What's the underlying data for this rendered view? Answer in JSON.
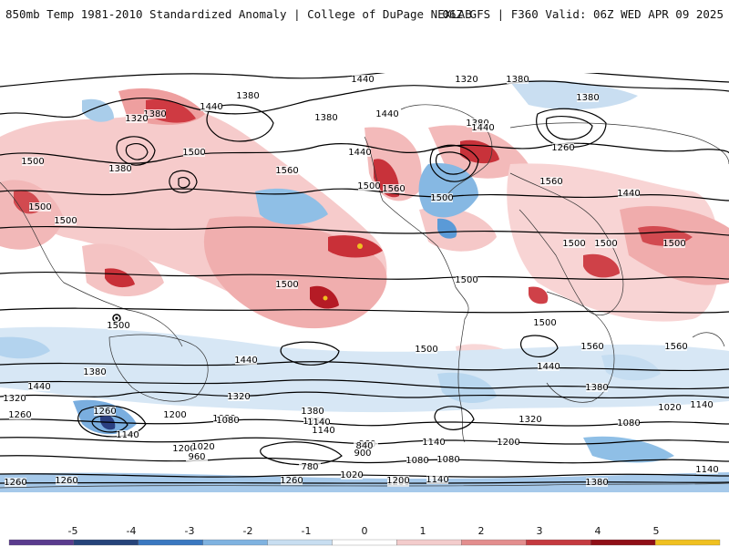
{
  "header": {
    "title": "850mb Temp 1981-2010 Standardized Anomaly | College of DuPage NEXLAB",
    "run_info": "06Z GFS | F360 Valid: 06Z WED APR 09 2025"
  },
  "map": {
    "variable": "850mb Temp Standardized Anomaly",
    "contour_labels": [
      "1320",
      "1380",
      "1440",
      "1380",
      "1320",
      "1440",
      "1380",
      "1380",
      "1440",
      "1380",
      "1380",
      "1260",
      "1440",
      "1500",
      "1380",
      "1500",
      "1560",
      "1440",
      "1500",
      "1560",
      "1500",
      "1560",
      "1440",
      "1500",
      "1500",
      "1500",
      "1500",
      "1500",
      "1500",
      "1500",
      "1500",
      "1440",
      "1560",
      "1500",
      "1500",
      "1560",
      "1440",
      "1380",
      "1440",
      "1380",
      "1320",
      "1260",
      "1200",
      "1080",
      "1320",
      "1140",
      "1320",
      "1380",
      "1260",
      "1140",
      "1200",
      "1080",
      "1020",
      "1140",
      "1200",
      "1020",
      "960",
      "1080",
      "960",
      "840",
      "900",
      "1140",
      "1080",
      "1200",
      "1080",
      "1140",
      "780",
      "1020",
      "1200",
      "1140",
      "1260",
      "1260",
      "1260",
      "1140",
      "1380",
      "1260"
    ],
    "colors": {
      "strong_positive": "#a3101a",
      "positive": "#e3646a",
      "weak_positive": "#f6c3c3",
      "weak_negative": "#b9d7ef",
      "negative": "#5aa0dc",
      "strong_negative": "#26437a"
    }
  },
  "colorbar": {
    "ticks": [
      "-5",
      "-4",
      "-3",
      "-2",
      "-1",
      "0",
      "1",
      "2",
      "3",
      "4",
      "5"
    ],
    "colors": [
      "#5a3b8e",
      "#26437a",
      "#3a78c0",
      "#7fb2e0",
      "#c8def1",
      "#ffffff",
      "#f3cccc",
      "#e38e8e",
      "#c4393f",
      "#8f0f17",
      "#f0c020"
    ]
  }
}
